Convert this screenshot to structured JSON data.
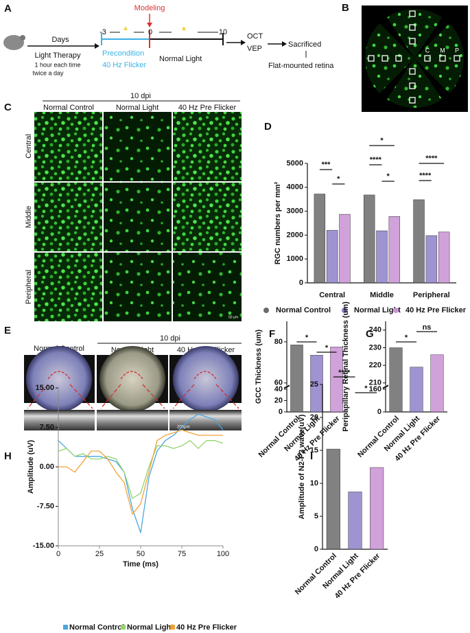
{
  "figure": {
    "a": {
      "label": "A",
      "days": "Days",
      "light_therapy": "Light Therapy",
      "note_1": "1 hour each time",
      "note_2": "twice a day",
      "modeling": "Modeling",
      "timeline_ticks": [
        "-3",
        "0",
        "10"
      ],
      "precondition_1": "Precondition",
      "precondition_2": "40 Hz Flicker",
      "normal_light": "Normal Light",
      "oct": "OCT",
      "vep": "VEP",
      "sacrificed": "Sacrificed",
      "retina": "Flat-mounted retina"
    },
    "b": {
      "label": "B",
      "regions": [
        "C",
        "M",
        "P"
      ]
    },
    "c": {
      "label": "C",
      "group": "10 dpi",
      "columns": [
        "Normal Control",
        "Normal Light",
        "40 Hz Pre Flicker"
      ],
      "rows": [
        "Central",
        "Middle",
        "Peripheral"
      ],
      "scale_bar": "50 μm"
    },
    "e": {
      "label": "E",
      "group": "10 dpi",
      "columns": [
        "Normal Control",
        "Normal Light",
        "40 Hz Pre Flicker"
      ],
      "scale_bar": "200μm"
    }
  },
  "chart_data": [
    {
      "type": "grouped_bar",
      "label": "D",
      "y_label": "RGC numbers per mm²",
      "categories": [
        "Central",
        "Middle",
        "Peripheral"
      ],
      "series": [
        {
          "name": "Normal Control",
          "color": "#6b6b6b",
          "values": [
            3720,
            3680,
            3480
          ]
        },
        {
          "name": "Normal Light",
          "color": "#8f80c9",
          "values": [
            2200,
            2180,
            1980
          ]
        },
        {
          "name": "40 Hz Pre Flicker",
          "color": "#c992d3",
          "values": [
            2870,
            2780,
            2130
          ]
        }
      ],
      "ylim": [
        0,
        5000
      ],
      "yticks": [
        0,
        1000,
        2000,
        3000,
        4000,
        5000
      ],
      "annotations": [
        "***",
        "*",
        "*",
        "****",
        "*",
        "****",
        "****"
      ]
    },
    {
      "type": "bar",
      "label": "F",
      "y_label": "GCC Thickness (um)",
      "categories": [
        "Normal Control",
        "Normal Light",
        "40 Hz Pre Flicker"
      ],
      "values": [
        78.5,
        73.5,
        77.5
      ],
      "colors": [
        "#6b6b6b",
        "#8f80c9",
        "#c992d3"
      ],
      "ylim": [
        0,
        90
      ],
      "yticks": [
        0,
        20,
        40,
        60,
        80
      ],
      "axis_break": [
        40,
        60
      ],
      "annotations": [
        "*",
        "*"
      ]
    },
    {
      "type": "bar",
      "label": "G",
      "y_label": "Peripapillary Retinal Thickness (um)",
      "categories": [
        "Normal Control",
        "Normal Light",
        "40 Hz Pre Flicker"
      ],
      "values": [
        230,
        219,
        226
      ],
      "colors": [
        "#6b6b6b",
        "#8f80c9",
        "#c992d3"
      ],
      "ylim": [
        0,
        245
      ],
      "yticks": [
        0,
        160,
        210,
        220,
        230,
        240
      ],
      "axis_break": [
        160,
        210
      ],
      "annotations": [
        "*",
        "ns"
      ]
    },
    {
      "type": "line",
      "label": "H",
      "x_label": "Time (ms)",
      "y_label": "Amplitude (uV)",
      "x": [
        0,
        5,
        10,
        15,
        20,
        25,
        30,
        35,
        40,
        45,
        50,
        55,
        60,
        65,
        70,
        75,
        80,
        85,
        90,
        95,
        100
      ],
      "series": [
        {
          "name": "Normal Control",
          "color": "#4ba6e0",
          "values": [
            5,
            3.5,
            2,
            2,
            2,
            2,
            1.5,
            1,
            -1,
            -8,
            -12.5,
            -2,
            3,
            5,
            6,
            7.5,
            9,
            10,
            9.5,
            9,
            7
          ]
        },
        {
          "name": "Normal Light",
          "color": "#93d46c",
          "values": [
            3,
            3.5,
            2,
            2.5,
            1.5,
            1.5,
            2,
            1.5,
            -1,
            -6,
            -5,
            0,
            4,
            4,
            3.5,
            4,
            5,
            3.5,
            5,
            5,
            4.5
          ]
        },
        {
          "name": "40 Hz Pre Flicker",
          "color": "#f0a23a",
          "values": [
            0,
            0,
            -1,
            1,
            3,
            3,
            1.5,
            -1,
            -3,
            -9,
            -7,
            -1,
            5,
            6,
            6.5,
            7,
            6.5,
            6,
            6,
            6,
            6
          ]
        }
      ],
      "xlim": [
        0,
        100
      ],
      "xticks": [
        0,
        25,
        50,
        75,
        100
      ],
      "ylim": [
        -15,
        15
      ],
      "yticks": [
        {
          "value": -15,
          "label": "-15.00"
        },
        {
          "value": -7.5,
          "label": "-7.50"
        },
        {
          "value": 0,
          "label": "0.00"
        },
        {
          "value": 7.5,
          "label": "7.50"
        },
        {
          "value": 15,
          "label": "15.00"
        }
      ]
    },
    {
      "type": "bar",
      "label": "I",
      "y_label": "Amplitude of N2-P2 wave(uV)",
      "categories": [
        "Normal Control",
        "Normal Light",
        "40 Hz Pre Flicker"
      ],
      "values": [
        15.2,
        8.7,
        12.4
      ],
      "colors": [
        "#6b6b6b",
        "#8f80c9",
        "#c992d3"
      ],
      "ylim": [
        0,
        25
      ],
      "yticks": [
        0,
        5,
        10,
        15,
        20,
        25
      ],
      "annotations": [
        "****",
        "*"
      ]
    }
  ]
}
